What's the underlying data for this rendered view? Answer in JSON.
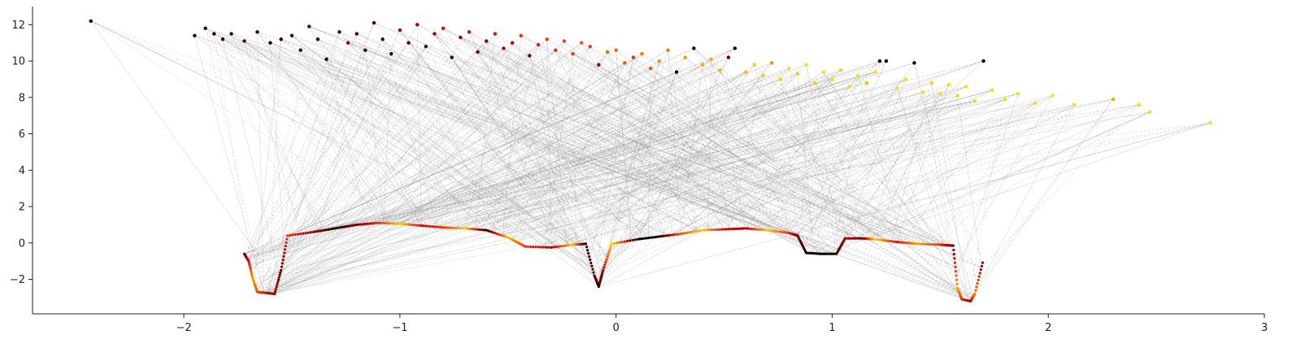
{
  "chart_data": {
    "type": "scatter",
    "title": "",
    "xlabel": "",
    "ylabel": "",
    "xlim": [
      -2.7,
      3.0
    ],
    "ylim": [
      -3.9,
      13.0
    ],
    "x_ticks": [
      -2,
      -1,
      0,
      1,
      2,
      3
    ],
    "y_ticks": [
      -2,
      0,
      2,
      4,
      6,
      8,
      10,
      12
    ],
    "x_tick_labels": [
      "−2",
      "−1",
      "0",
      "1",
      "2",
      "3"
    ],
    "y_tick_labels": [
      "−2",
      "0",
      "2",
      "4",
      "6",
      "8",
      "10",
      "12"
    ],
    "grid": false,
    "legend": "none",
    "spines": "left-bottom",
    "colors": {
      "connector": "#8c8c8c",
      "axis": "#222222",
      "colormap": [
        "#000000",
        "#5a0000",
        "#b00000",
        "#e83010",
        "#f07000",
        "#f5b800",
        "#f8f020"
      ]
    },
    "upper_cloud": {
      "description_free": true,
      "points": [
        [
          -2.43,
          12.2,
          0.0
        ],
        [
          -1.95,
          11.4,
          0.05
        ],
        [
          -1.9,
          11.8,
          0.05
        ],
        [
          -1.86,
          11.5,
          0.08
        ],
        [
          -1.82,
          11.2,
          0.1
        ],
        [
          -1.78,
          11.5,
          0.1
        ],
        [
          -1.72,
          11.1,
          0.12
        ],
        [
          -1.66,
          11.6,
          0.1
        ],
        [
          -1.6,
          11.0,
          0.08
        ],
        [
          -1.55,
          11.2,
          0.1
        ],
        [
          -1.5,
          11.4,
          0.12
        ],
        [
          -1.46,
          10.6,
          0.1
        ],
        [
          -1.42,
          11.9,
          0.2
        ],
        [
          -1.38,
          11.2,
          0.1
        ],
        [
          -1.34,
          10.1,
          0.05
        ],
        [
          -1.28,
          11.6,
          0.1
        ],
        [
          -1.24,
          11.0,
          0.3
        ],
        [
          -1.2,
          11.5,
          0.15
        ],
        [
          -1.16,
          10.6,
          0.1
        ],
        [
          -1.12,
          12.1,
          0.15
        ],
        [
          -1.08,
          11.2,
          0.12
        ],
        [
          -1.04,
          10.4,
          0.1
        ],
        [
          -1.0,
          11.7,
          0.3
        ],
        [
          -0.96,
          11.0,
          0.2
        ],
        [
          -0.92,
          12.0,
          0.35
        ],
        [
          -0.88,
          10.8,
          0.15
        ],
        [
          -0.84,
          11.5,
          0.3
        ],
        [
          -0.8,
          11.8,
          0.4
        ],
        [
          -0.76,
          10.2,
          0.1
        ],
        [
          -0.72,
          11.3,
          0.25
        ],
        [
          -0.68,
          11.6,
          0.4
        ],
        [
          -0.64,
          10.5,
          0.2
        ],
        [
          -0.6,
          11.1,
          0.3
        ],
        [
          -0.56,
          11.5,
          0.4
        ],
        [
          -0.52,
          10.7,
          0.3
        ],
        [
          -0.48,
          11.0,
          0.35
        ],
        [
          -0.44,
          11.4,
          0.5
        ],
        [
          -0.4,
          10.3,
          0.2
        ],
        [
          -0.36,
          10.9,
          0.45
        ],
        [
          -0.32,
          11.2,
          0.55
        ],
        [
          -0.28,
          10.6,
          0.5
        ],
        [
          -0.24,
          11.1,
          0.55
        ],
        [
          -0.2,
          10.4,
          0.5
        ],
        [
          -0.16,
          11.0,
          0.6
        ],
        [
          -0.12,
          10.8,
          0.55
        ],
        [
          -0.08,
          9.8,
          0.3
        ],
        [
          -0.04,
          10.5,
          0.65
        ],
        [
          0.0,
          10.6,
          0.65
        ],
        [
          0.04,
          9.9,
          0.6
        ],
        [
          0.08,
          10.2,
          0.5
        ],
        [
          0.12,
          10.4,
          0.7
        ],
        [
          0.16,
          9.6,
          0.6
        ],
        [
          0.2,
          10.0,
          0.75
        ],
        [
          0.24,
          10.6,
          0.7
        ],
        [
          0.28,
          9.4,
          0.05
        ],
        [
          0.32,
          10.2,
          0.75
        ],
        [
          0.36,
          10.7,
          0.0
        ],
        [
          0.4,
          9.8,
          0.8
        ],
        [
          0.44,
          10.1,
          0.8
        ],
        [
          0.48,
          9.5,
          0.85
        ],
        [
          0.52,
          10.2,
          0.2
        ],
        [
          0.55,
          10.7,
          0.0
        ],
        [
          0.6,
          9.4,
          0.85
        ],
        [
          0.64,
          9.8,
          0.9
        ],
        [
          0.68,
          9.2,
          0.9
        ],
        [
          0.72,
          9.9,
          0.75
        ],
        [
          0.76,
          9.0,
          0.9
        ],
        [
          0.8,
          9.6,
          0.95
        ],
        [
          0.84,
          9.3,
          0.9
        ],
        [
          0.88,
          9.8,
          0.95
        ],
        [
          0.92,
          8.8,
          0.9
        ],
        [
          0.96,
          9.4,
          0.95
        ],
        [
          1.0,
          9.0,
          0.95
        ],
        [
          1.04,
          9.5,
          0.9
        ],
        [
          1.08,
          8.6,
          0.95
        ],
        [
          1.12,
          9.2,
          0.95
        ],
        [
          1.16,
          8.8,
          0.85
        ],
        [
          1.2,
          9.4,
          0.95
        ],
        [
          1.22,
          10.0,
          0.0
        ],
        [
          1.25,
          10.0,
          0.0
        ],
        [
          1.3,
          8.5,
          0.95
        ],
        [
          1.34,
          9.0,
          0.95
        ],
        [
          1.38,
          9.9,
          0.0
        ],
        [
          1.42,
          8.3,
          0.95
        ],
        [
          1.46,
          8.8,
          0.9
        ],
        [
          1.5,
          8.2,
          0.95
        ],
        [
          1.54,
          8.7,
          0.95
        ],
        [
          1.58,
          8.1,
          0.95
        ],
        [
          1.62,
          8.6,
          0.95
        ],
        [
          1.66,
          7.8,
          0.95
        ],
        [
          1.7,
          10.0,
          0.0
        ],
        [
          1.74,
          8.4,
          0.95
        ],
        [
          1.8,
          7.9,
          0.95
        ],
        [
          1.86,
          8.2,
          0.95
        ],
        [
          1.94,
          7.7,
          0.95
        ],
        [
          2.02,
          8.1,
          0.95
        ],
        [
          2.12,
          7.6,
          0.95
        ],
        [
          2.3,
          7.9,
          0.8
        ],
        [
          2.42,
          7.6,
          0.95
        ],
        [
          2.47,
          7.2,
          0.95
        ],
        [
          2.75,
          6.6,
          0.95
        ]
      ]
    },
    "curve": {
      "points": [
        [
          -1.72,
          -0.6,
          0.2
        ],
        [
          -1.7,
          -1.0,
          0.4
        ],
        [
          -1.68,
          -2.0,
          0.8
        ],
        [
          -1.66,
          -2.7,
          0.6
        ],
        [
          -1.62,
          -2.75,
          0.4
        ],
        [
          -1.58,
          -2.8,
          0.3
        ],
        [
          -1.55,
          -1.5,
          0.2
        ],
        [
          -1.52,
          0.4,
          0.5
        ],
        [
          -1.4,
          0.6,
          0.3
        ],
        [
          -1.3,
          0.8,
          0.05
        ],
        [
          -1.2,
          1.0,
          0.2
        ],
        [
          -1.1,
          1.1,
          0.5
        ],
        [
          -1.0,
          1.05,
          0.9
        ],
        [
          -0.9,
          0.95,
          0.4
        ],
        [
          -0.8,
          0.85,
          0.5
        ],
        [
          -0.7,
          0.8,
          0.9
        ],
        [
          -0.6,
          0.7,
          0.05
        ],
        [
          -0.5,
          0.3,
          0.85
        ],
        [
          -0.42,
          -0.2,
          0.5
        ],
        [
          -0.3,
          -0.25,
          0.3
        ],
        [
          -0.2,
          -0.1,
          0.9
        ],
        [
          -0.14,
          -0.05,
          0.05
        ],
        [
          -0.1,
          -1.8,
          0.2
        ],
        [
          -0.08,
          -2.4,
          0.1
        ],
        [
          -0.06,
          -1.5,
          0.3
        ],
        [
          -0.02,
          -0.05,
          0.9
        ],
        [
          0.1,
          0.2,
          0.0
        ],
        [
          0.2,
          0.35,
          0.05
        ],
        [
          0.3,
          0.5,
          0.6
        ],
        [
          0.4,
          0.7,
          0.9
        ],
        [
          0.5,
          0.75,
          0.4
        ],
        [
          0.6,
          0.8,
          0.3
        ],
        [
          0.7,
          0.7,
          0.9
        ],
        [
          0.8,
          0.55,
          0.5
        ],
        [
          0.84,
          0.4,
          0.2
        ],
        [
          0.88,
          -0.55,
          0.05
        ],
        [
          0.95,
          -0.6,
          0.0
        ],
        [
          1.02,
          -0.6,
          0.1
        ],
        [
          1.06,
          0.25,
          0.3
        ],
        [
          1.14,
          0.25,
          0.2
        ],
        [
          1.2,
          0.2,
          0.9
        ],
        [
          1.3,
          0.05,
          0.4
        ],
        [
          1.4,
          -0.05,
          0.8
        ],
        [
          1.5,
          -0.1,
          0.5
        ],
        [
          1.56,
          -0.15,
          0.2
        ],
        [
          1.58,
          -2.5,
          0.8
        ],
        [
          1.6,
          -3.1,
          0.5
        ],
        [
          1.64,
          -3.2,
          0.3
        ],
        [
          1.66,
          -2.8,
          0.7
        ],
        [
          1.7,
          -0.9,
          0.2
        ]
      ]
    }
  }
}
